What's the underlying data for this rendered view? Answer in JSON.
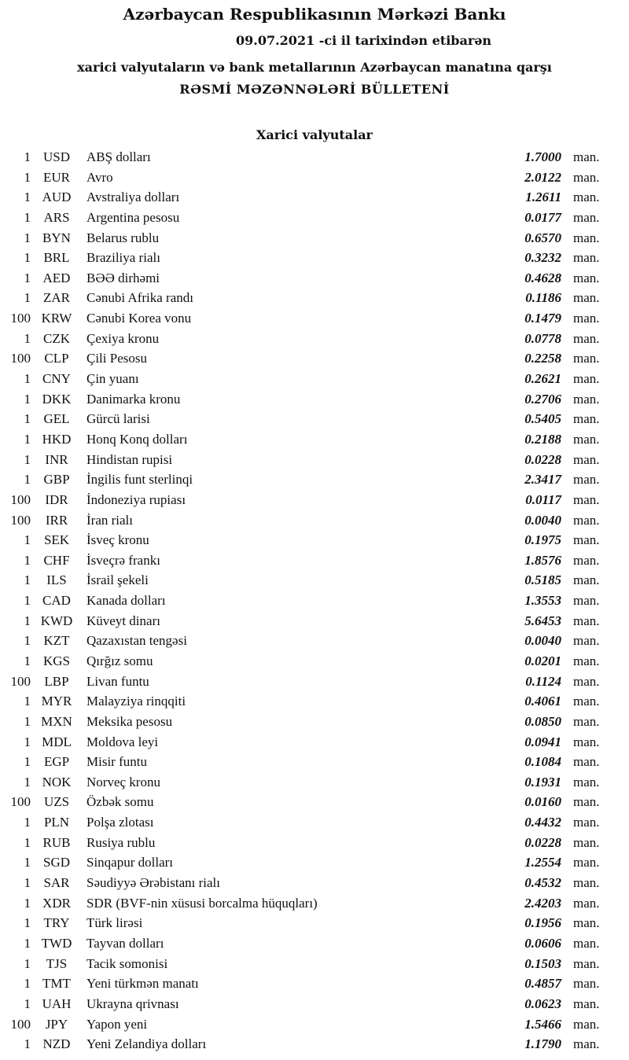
{
  "header": {
    "title": "Azərbaycan Respublikasının Mərkəzi Bankı",
    "date_line": "09.07.2021  -ci il tarixindən etibarən",
    "subtitle": "xarici valyutaların və bank metallarının Azərbaycan manatına qarşı",
    "bulletin": "RƏSMİ MƏZƏNNƏLƏRİ BÜLLETENİ"
  },
  "section_title": "Xarici valyutalar",
  "unit": "man.",
  "rates": [
    {
      "amount": "1",
      "code": "USD",
      "name": "ABŞ dolları",
      "value": "1.7000"
    },
    {
      "amount": "1",
      "code": "EUR",
      "name": "Avro",
      "value": "2.0122"
    },
    {
      "amount": "1",
      "code": "AUD",
      "name": "Avstraliya dolları",
      "value": "1.2611"
    },
    {
      "amount": "1",
      "code": "ARS",
      "name": "Argentina pesosu",
      "value": "0.0177"
    },
    {
      "amount": "1",
      "code": "BYN",
      "name": "Belarus rublu",
      "value": "0.6570"
    },
    {
      "amount": "1",
      "code": "BRL",
      "name": "Braziliya rialı",
      "value": "0.3232"
    },
    {
      "amount": "1",
      "code": "AED",
      "name": "BƏƏ dirhəmi",
      "value": "0.4628"
    },
    {
      "amount": "1",
      "code": "ZAR",
      "name": "Cənubi Afrika randı",
      "value": "0.1186"
    },
    {
      "amount": "100",
      "code": "KRW",
      "name": "Cənubi Korea vonu",
      "value": "0.1479"
    },
    {
      "amount": "1",
      "code": "CZK",
      "name": "Çexiya kronu",
      "value": "0.0778"
    },
    {
      "amount": "100",
      "code": "CLP",
      "name": "Çili Pesosu",
      "value": "0.2258"
    },
    {
      "amount": "1",
      "code": "CNY",
      "name": "Çin yuanı",
      "value": "0.2621"
    },
    {
      "amount": "1",
      "code": "DKK",
      "name": "Danimarka kronu",
      "value": "0.2706"
    },
    {
      "amount": "1",
      "code": "GEL",
      "name": "Gürcü larisi",
      "value": "0.5405"
    },
    {
      "amount": "1",
      "code": "HKD",
      "name": "Honq Konq dolları",
      "value": "0.2188"
    },
    {
      "amount": "1",
      "code": "INR",
      "name": "Hindistan rupisi",
      "value": "0.0228"
    },
    {
      "amount": "1",
      "code": "GBP",
      "name": "İngilis funt sterlinqi",
      "value": "2.3417"
    },
    {
      "amount": "100",
      "code": "IDR",
      "name": "İndoneziya rupiası",
      "value": "0.0117"
    },
    {
      "amount": "100",
      "code": "IRR",
      "name": "İran rialı",
      "value": "0.0040"
    },
    {
      "amount": "1",
      "code": "SEK",
      "name": "İsveç kronu",
      "value": "0.1975"
    },
    {
      "amount": "1",
      "code": "CHF",
      "name": "İsveçrə frankı",
      "value": "1.8576"
    },
    {
      "amount": "1",
      "code": "ILS",
      "name": "İsrail şekeli",
      "value": "0.5185"
    },
    {
      "amount": "1",
      "code": "CAD",
      "name": "Kanada dolları",
      "value": "1.3553"
    },
    {
      "amount": "1",
      "code": "KWD",
      "name": "Küveyt dinarı",
      "value": "5.6453"
    },
    {
      "amount": "1",
      "code": "KZT",
      "name": "Qazaxıstan tengəsi",
      "value": "0.0040"
    },
    {
      "amount": "1",
      "code": "KGS",
      "name": "Qırğız somu",
      "value": "0.0201"
    },
    {
      "amount": "100",
      "code": "LBP",
      "name": "Livan funtu",
      "value": "0.1124"
    },
    {
      "amount": "1",
      "code": "MYR",
      "name": "Malayziya rinqqiti",
      "value": "0.4061"
    },
    {
      "amount": "1",
      "code": "MXN",
      "name": "Meksika pesosu",
      "value": "0.0850"
    },
    {
      "amount": "1",
      "code": "MDL",
      "name": "Moldova leyi",
      "value": "0.0941"
    },
    {
      "amount": "1",
      "code": "EGP",
      "name": "Misir funtu",
      "value": "0.1084"
    },
    {
      "amount": "1",
      "code": "NOK",
      "name": "Norveç kronu",
      "value": "0.1931"
    },
    {
      "amount": "100",
      "code": "UZS",
      "name": "Özbək somu",
      "value": "0.0160"
    },
    {
      "amount": "1",
      "code": "PLN",
      "name": "Polşa zlotası",
      "value": "0.4432"
    },
    {
      "amount": "1",
      "code": "RUB",
      "name": "Rusiya rublu",
      "value": "0.0228"
    },
    {
      "amount": "1",
      "code": "SGD",
      "name": "Sinqapur dolları",
      "value": "1.2554"
    },
    {
      "amount": "1",
      "code": "SAR",
      "name": "Səudiyyə Ərəbistanı rialı",
      "value": "0.4532"
    },
    {
      "amount": "1",
      "code": "XDR",
      "name": "SDR (BVF-nin xüsusi borcalma hüquqları)",
      "value": "2.4203"
    },
    {
      "amount": "1",
      "code": "TRY",
      "name": "Türk lirəsi",
      "value": "0.1956"
    },
    {
      "amount": "1",
      "code": "TWD",
      "name": "Tayvan dolları",
      "value": "0.0606"
    },
    {
      "amount": "1",
      "code": "TJS",
      "name": "Tacik somonisi",
      "value": "0.1503"
    },
    {
      "amount": "1",
      "code": "TMT",
      "name": "Yeni türkmən manatı",
      "value": "0.4857"
    },
    {
      "amount": "1",
      "code": "UAH",
      "name": "Ukrayna qrivnası",
      "value": "0.0623"
    },
    {
      "amount": "100",
      "code": "JPY",
      "name": "Yapon yeni",
      "value": "1.5466"
    },
    {
      "amount": "1",
      "code": "NZD",
      "name": "Yeni Zelandiya dolları",
      "value": "1.1790"
    }
  ]
}
